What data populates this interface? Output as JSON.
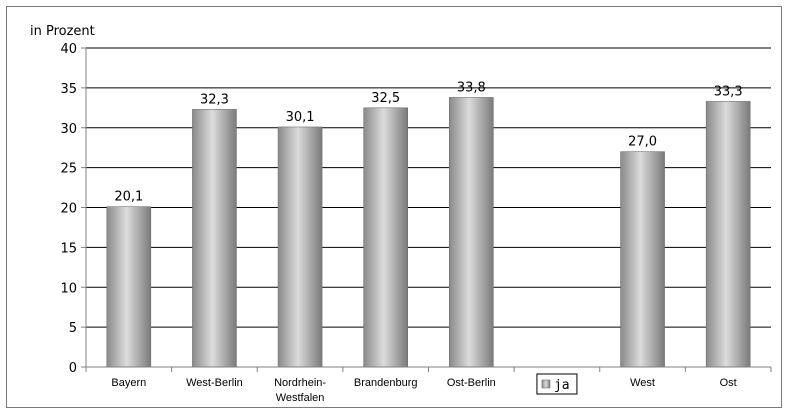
{
  "chart_data": {
    "type": "bar",
    "ylabel": "in Prozent",
    "ylim": [
      0,
      40
    ],
    "ytick_step": 5,
    "grid": true,
    "categories": [
      "Bayern",
      "West-Berlin",
      "Nordrhein-Westfalen",
      "Brandenburg",
      "Ost-Berlin",
      "",
      "West",
      "Ost"
    ],
    "category_lines": [
      [
        "Bayern"
      ],
      [
        "West-Berlin"
      ],
      [
        "Nordrhein-",
        "Westfalen"
      ],
      [
        "Brandenburg"
      ],
      [
        "Ost-Berlin"
      ],
      [],
      [
        "West"
      ],
      [
        "Ost"
      ]
    ],
    "series": [
      {
        "name": "ja",
        "values": [
          20.1,
          32.3,
          30.1,
          32.5,
          33.8,
          null,
          27.0,
          33.3
        ],
        "labels": [
          "20,1",
          "32,3",
          "30,1",
          "32,5",
          "33,8",
          "",
          "27,0",
          "33,3"
        ]
      }
    ],
    "legend": {
      "placement": "bottom, in empty category slot",
      "label": "ja"
    },
    "colors": {
      "bar_dark": "#7a7a7a",
      "bar_light": "#d9d9d9",
      "grid": "#000000",
      "axis": "#808080"
    }
  }
}
